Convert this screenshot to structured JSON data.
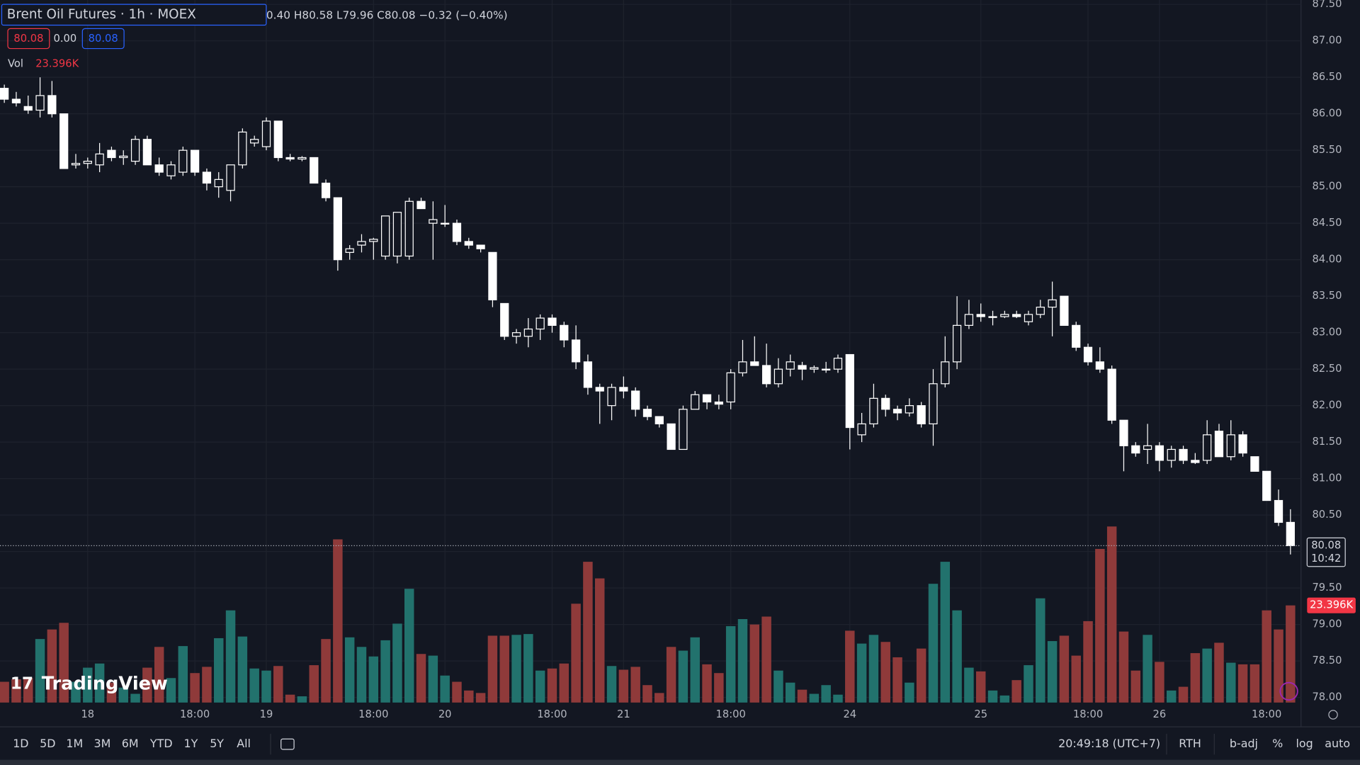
{
  "chart_data": {
    "type": "candlestick",
    "title": "Brent Oil Futures · 1h · MOEX",
    "readout": "0.40 H80.58 L79.96 C80.08 −0.32 (−0.40%)",
    "header_buttons": [
      "80.08",
      "0.00",
      "80.08"
    ],
    "categories": [
      null,
      null,
      null,
      null,
      null,
      null,
      null,
      "18",
      null,
      null,
      null,
      null,
      null,
      null,
      null,
      null,
      "18:00",
      null,
      null,
      null,
      null,
      null,
      "19",
      null,
      null,
      null,
      null,
      null,
      null,
      null,
      null,
      "18:00",
      null,
      null,
      null,
      null,
      null,
      "20",
      null,
      null,
      null,
      null,
      null,
      null,
      null,
      null,
      "18:00",
      null,
      null,
      null,
      null,
      null,
      "21",
      null,
      null,
      null,
      null,
      null,
      null,
      null,
      null,
      "18:00",
      null,
      null,
      null,
      null,
      null,
      null,
      null,
      null,
      null,
      "24",
      null,
      null,
      null,
      null,
      null,
      null,
      null,
      null,
      null,
      null,
      "25",
      null,
      null,
      null,
      null,
      null,
      null,
      null,
      null,
      "18:00",
      null,
      null,
      null,
      null,
      null,
      "26",
      null,
      null,
      null,
      null,
      null,
      null,
      null,
      null,
      "18:00",
      null,
      null
    ],
    "open": [
      86.35,
      86.2,
      86.1,
      86.05,
      86.25,
      86.0,
      85.3,
      85.32,
      85.3,
      85.5,
      85.4,
      85.35,
      85.65,
      85.3,
      85.15,
      85.2,
      85.5,
      85.2,
      85.0,
      84.95,
      85.3,
      85.6,
      85.55,
      85.9,
      85.4,
      85.38,
      85.4,
      85.05,
      84.85,
      84.1,
      84.2,
      84.25,
      84.05,
      84.05,
      84.05,
      84.8,
      84.5,
      84.5,
      84.5,
      84.25,
      84.2,
      84.1,
      83.4,
      82.95,
      82.95,
      83.05,
      83.2,
      83.1,
      82.9,
      82.6,
      82.25,
      82.0,
      82.25,
      82.2,
      81.95,
      81.85,
      81.75,
      81.4,
      81.95,
      82.15,
      82.05,
      82.05,
      82.45,
      82.6,
      82.55,
      82.3,
      82.5,
      82.55,
      82.5,
      82.5,
      82.5,
      82.7,
      81.6,
      81.75,
      82.1,
      81.95,
      81.9,
      82.0,
      81.75,
      82.3,
      82.6,
      83.1,
      83.25,
      83.22,
      83.22,
      83.25,
      83.15,
      83.25,
      83.35,
      83.5,
      83.1,
      82.8,
      82.6,
      82.5,
      81.8,
      81.45,
      81.4,
      81.45,
      81.25,
      81.4,
      81.25,
      81.25,
      81.65,
      81.3,
      81.6,
      81.3,
      81.1,
      80.7,
      80.4
    ],
    "high": [
      86.4,
      86.3,
      86.25,
      86.5,
      86.45,
      86.0,
      85.45,
      85.4,
      85.6,
      85.55,
      85.5,
      85.7,
      85.7,
      85.4,
      85.35,
      85.55,
      85.5,
      85.25,
      85.2,
      85.3,
      85.8,
      85.7,
      85.95,
      85.9,
      85.45,
      85.42,
      85.4,
      85.1,
      84.85,
      84.2,
      84.35,
      84.3,
      84.6,
      84.65,
      84.85,
      84.85,
      84.8,
      84.75,
      84.55,
      84.3,
      84.2,
      84.1,
      83.4,
      83.05,
      83.2,
      83.25,
      83.25,
      83.15,
      83.1,
      82.7,
      82.3,
      82.3,
      82.4,
      82.25,
      82.0,
      81.85,
      81.75,
      82.0,
      82.2,
      82.15,
      82.15,
      82.5,
      82.9,
      82.95,
      82.85,
      82.65,
      82.7,
      82.6,
      82.55,
      82.6,
      82.7,
      82.7,
      81.9,
      82.3,
      82.15,
      82.0,
      82.1,
      82.05,
      82.5,
      82.95,
      83.5,
      83.45,
      83.4,
      83.3,
      83.3,
      83.3,
      83.3,
      83.45,
      83.7,
      83.5,
      83.15,
      82.85,
      82.8,
      82.55,
      81.8,
      81.5,
      81.75,
      81.5,
      81.45,
      81.45,
      81.35,
      81.8,
      81.75,
      81.8,
      81.65,
      81.3,
      81.1,
      80.85,
      80.58
    ],
    "low": [
      86.15,
      86.1,
      86.0,
      85.95,
      85.95,
      85.25,
      85.25,
      85.25,
      85.2,
      85.35,
      85.3,
      85.3,
      85.3,
      85.15,
      85.1,
      85.15,
      85.15,
      84.95,
      84.85,
      84.8,
      85.25,
      85.55,
      85.5,
      85.35,
      85.35,
      85.35,
      85.05,
      84.8,
      83.85,
      84.0,
      84.1,
      84.0,
      84.0,
      83.95,
      84.0,
      84.7,
      84.0,
      84.45,
      84.2,
      84.15,
      84.1,
      83.35,
      82.9,
      82.85,
      82.8,
      82.9,
      83.0,
      82.8,
      82.5,
      82.15,
      81.75,
      81.8,
      82.1,
      81.85,
      81.8,
      81.7,
      81.4,
      81.4,
      81.95,
      81.95,
      81.95,
      81.95,
      82.4,
      82.55,
      82.25,
      82.25,
      82.4,
      82.35,
      82.45,
      82.45,
      82.45,
      81.4,
      81.5,
      81.7,
      81.85,
      81.8,
      81.85,
      81.7,
      81.45,
      82.25,
      82.5,
      83.05,
      83.15,
      83.1,
      83.2,
      83.2,
      83.1,
      83.2,
      82.95,
      83.1,
      82.75,
      82.55,
      82.45,
      81.75,
      81.1,
      81.3,
      81.2,
      81.1,
      81.15,
      81.2,
      81.2,
      81.2,
      81.3,
      81.25,
      81.3,
      81.1,
      80.7,
      80.35,
      79.96
    ],
    "close": [
      86.2,
      86.15,
      86.05,
      86.25,
      86.0,
      85.25,
      85.32,
      85.35,
      85.45,
      85.4,
      85.42,
      85.65,
      85.3,
      85.2,
      85.3,
      85.5,
      85.2,
      85.05,
      85.1,
      85.3,
      85.75,
      85.65,
      85.9,
      85.4,
      85.38,
      85.4,
      85.05,
      84.85,
      84.0,
      84.15,
      84.25,
      84.28,
      84.6,
      84.65,
      84.8,
      84.7,
      84.55,
      84.5,
      84.25,
      84.2,
      84.15,
      83.45,
      82.95,
      83.0,
      83.05,
      83.2,
      83.1,
      82.9,
      82.6,
      82.25,
      82.2,
      82.25,
      82.2,
      81.95,
      81.85,
      81.75,
      81.4,
      81.95,
      82.15,
      82.05,
      82.02,
      82.45,
      82.6,
      82.55,
      82.3,
      82.5,
      82.6,
      82.5,
      82.52,
      82.5,
      82.65,
      81.7,
      81.75,
      82.1,
      81.95,
      81.9,
      82.0,
      81.75,
      82.3,
      82.6,
      83.1,
      83.25,
      83.22,
      83.22,
      83.25,
      83.22,
      83.25,
      83.35,
      83.45,
      83.1,
      82.8,
      82.6,
      82.5,
      81.8,
      81.45,
      81.35,
      81.45,
      81.25,
      81.4,
      81.25,
      81.22,
      81.6,
      81.3,
      81.6,
      81.35,
      81.1,
      80.7,
      80.4,
      80.08
    ],
    "candle_color": "#ffffff",
    "volume": {
      "name": "Vol",
      "last_label": "23.396K",
      "up_color": "#22726d",
      "down_color": "#8f3a3a",
      "values": [
        5000,
        5600,
        5900,
        15300,
        17600,
        19200,
        5000,
        8400,
        9400,
        4800,
        3600,
        2100,
        8400,
        13400,
        5900,
        13600,
        7100,
        8600,
        15500,
        22200,
        15900,
        8200,
        7700,
        8800,
        1900,
        1500,
        9000,
        15300,
        39300,
        15700,
        13400,
        11100,
        15000,
        19000,
        27400,
        11700,
        11300,
        6500,
        5000,
        2900,
        2300,
        16100,
        16100,
        16300,
        16500,
        7700,
        8200,
        9400,
        23800,
        33900,
        29900,
        8800,
        7900,
        8600,
        4200,
        2300,
        13400,
        12500,
        15700,
        9200,
        7100,
        18400,
        20100,
        18800,
        20700,
        7700,
        4800,
        3100,
        2100,
        4200,
        1900,
        17300,
        14200,
        16300,
        14600,
        10900,
        4800,
        13000,
        28600,
        33900,
        22200,
        8400,
        7500,
        2900,
        1700,
        5400,
        9000,
        25100,
        14800,
        16100,
        11300,
        19600,
        37000,
        42400,
        17100,
        7700,
        16300,
        9800,
        2900,
        3800,
        11900,
        13000,
        14400,
        9600,
        9200,
        9200,
        22200,
        17600,
        23396
      ]
    },
    "ylim": [
      77.93,
      87.56
    ],
    "yticks": [
      {
        "value": 87.5,
        "label": "87.50"
      },
      {
        "value": 87,
        "label": "87.00"
      },
      {
        "value": 86.5,
        "label": "86.50"
      },
      {
        "value": 86,
        "label": "86.00"
      },
      {
        "value": 85.5,
        "label": "85.50"
      },
      {
        "value": 85,
        "label": "85.00"
      },
      {
        "value": 84.5,
        "label": "84.50"
      },
      {
        "value": 84,
        "label": "84.00"
      },
      {
        "value": 83.5,
        "label": "83.50"
      },
      {
        "value": 83,
        "label": "83.00"
      },
      {
        "value": 82.5,
        "label": "82.50"
      },
      {
        "value": 82,
        "label": "82.00"
      },
      {
        "value": 81.5,
        "label": "81.50"
      },
      {
        "value": 81,
        "label": "81.00"
      },
      {
        "value": 80.5,
        "label": "80.50"
      },
      {
        "value": 80,
        "label": "80.00"
      },
      {
        "value": 79.5,
        "label": "79.50"
      },
      {
        "value": 79,
        "label": "79.00"
      },
      {
        "value": 78.5,
        "label": "78.50"
      },
      {
        "value": 78,
        "label": "78.00"
      }
    ],
    "grid": true,
    "last_price": 80.08,
    "countdown": "10:42",
    "watermark": "TradingView",
    "ranges": [
      "1D",
      "5D",
      "1M",
      "3M",
      "6M",
      "YTD",
      "1Y",
      "5Y",
      "All"
    ],
    "clock": "20:49:18 (UTC+7)",
    "options": [
      "RTH",
      "b-adj",
      "%",
      "log",
      "auto"
    ]
  }
}
